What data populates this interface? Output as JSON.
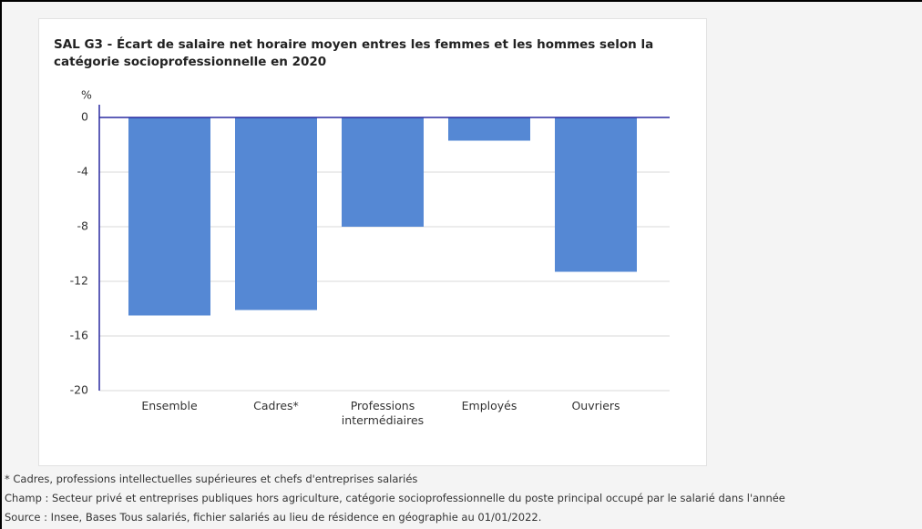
{
  "chart_data": {
    "type": "bar",
    "title": "SAL G3 - Écart de salaire net horaire moyen entres les femmes et les hommes selon la catégorie socioprofessionnelle en 2020",
    "y_label": "%",
    "categories": [
      "Ensemble",
      "Cadres*",
      "Professions intermédiaires",
      "Employés",
      "Ouvriers"
    ],
    "values": [
      -14.5,
      -14.1,
      -8.0,
      -1.7,
      -11.3
    ],
    "color": "#5588d4",
    "ylim": [
      -20,
      0
    ],
    "yticks": [
      0,
      -4,
      -8,
      -12,
      -16,
      -20
    ],
    "grid": true,
    "notes": [
      "* Cadres, professions intellectuelles supérieures et chefs d'entreprises salariés",
      "Champ : Secteur privé et entreprises publiques hors agriculture, catégorie socioprofessionnelle du poste principal occupé par le salarié dans l'année",
      "Source : Insee, Bases Tous salariés, fichier salariés au lieu de résidence en géographie au 01/01/2022."
    ]
  }
}
